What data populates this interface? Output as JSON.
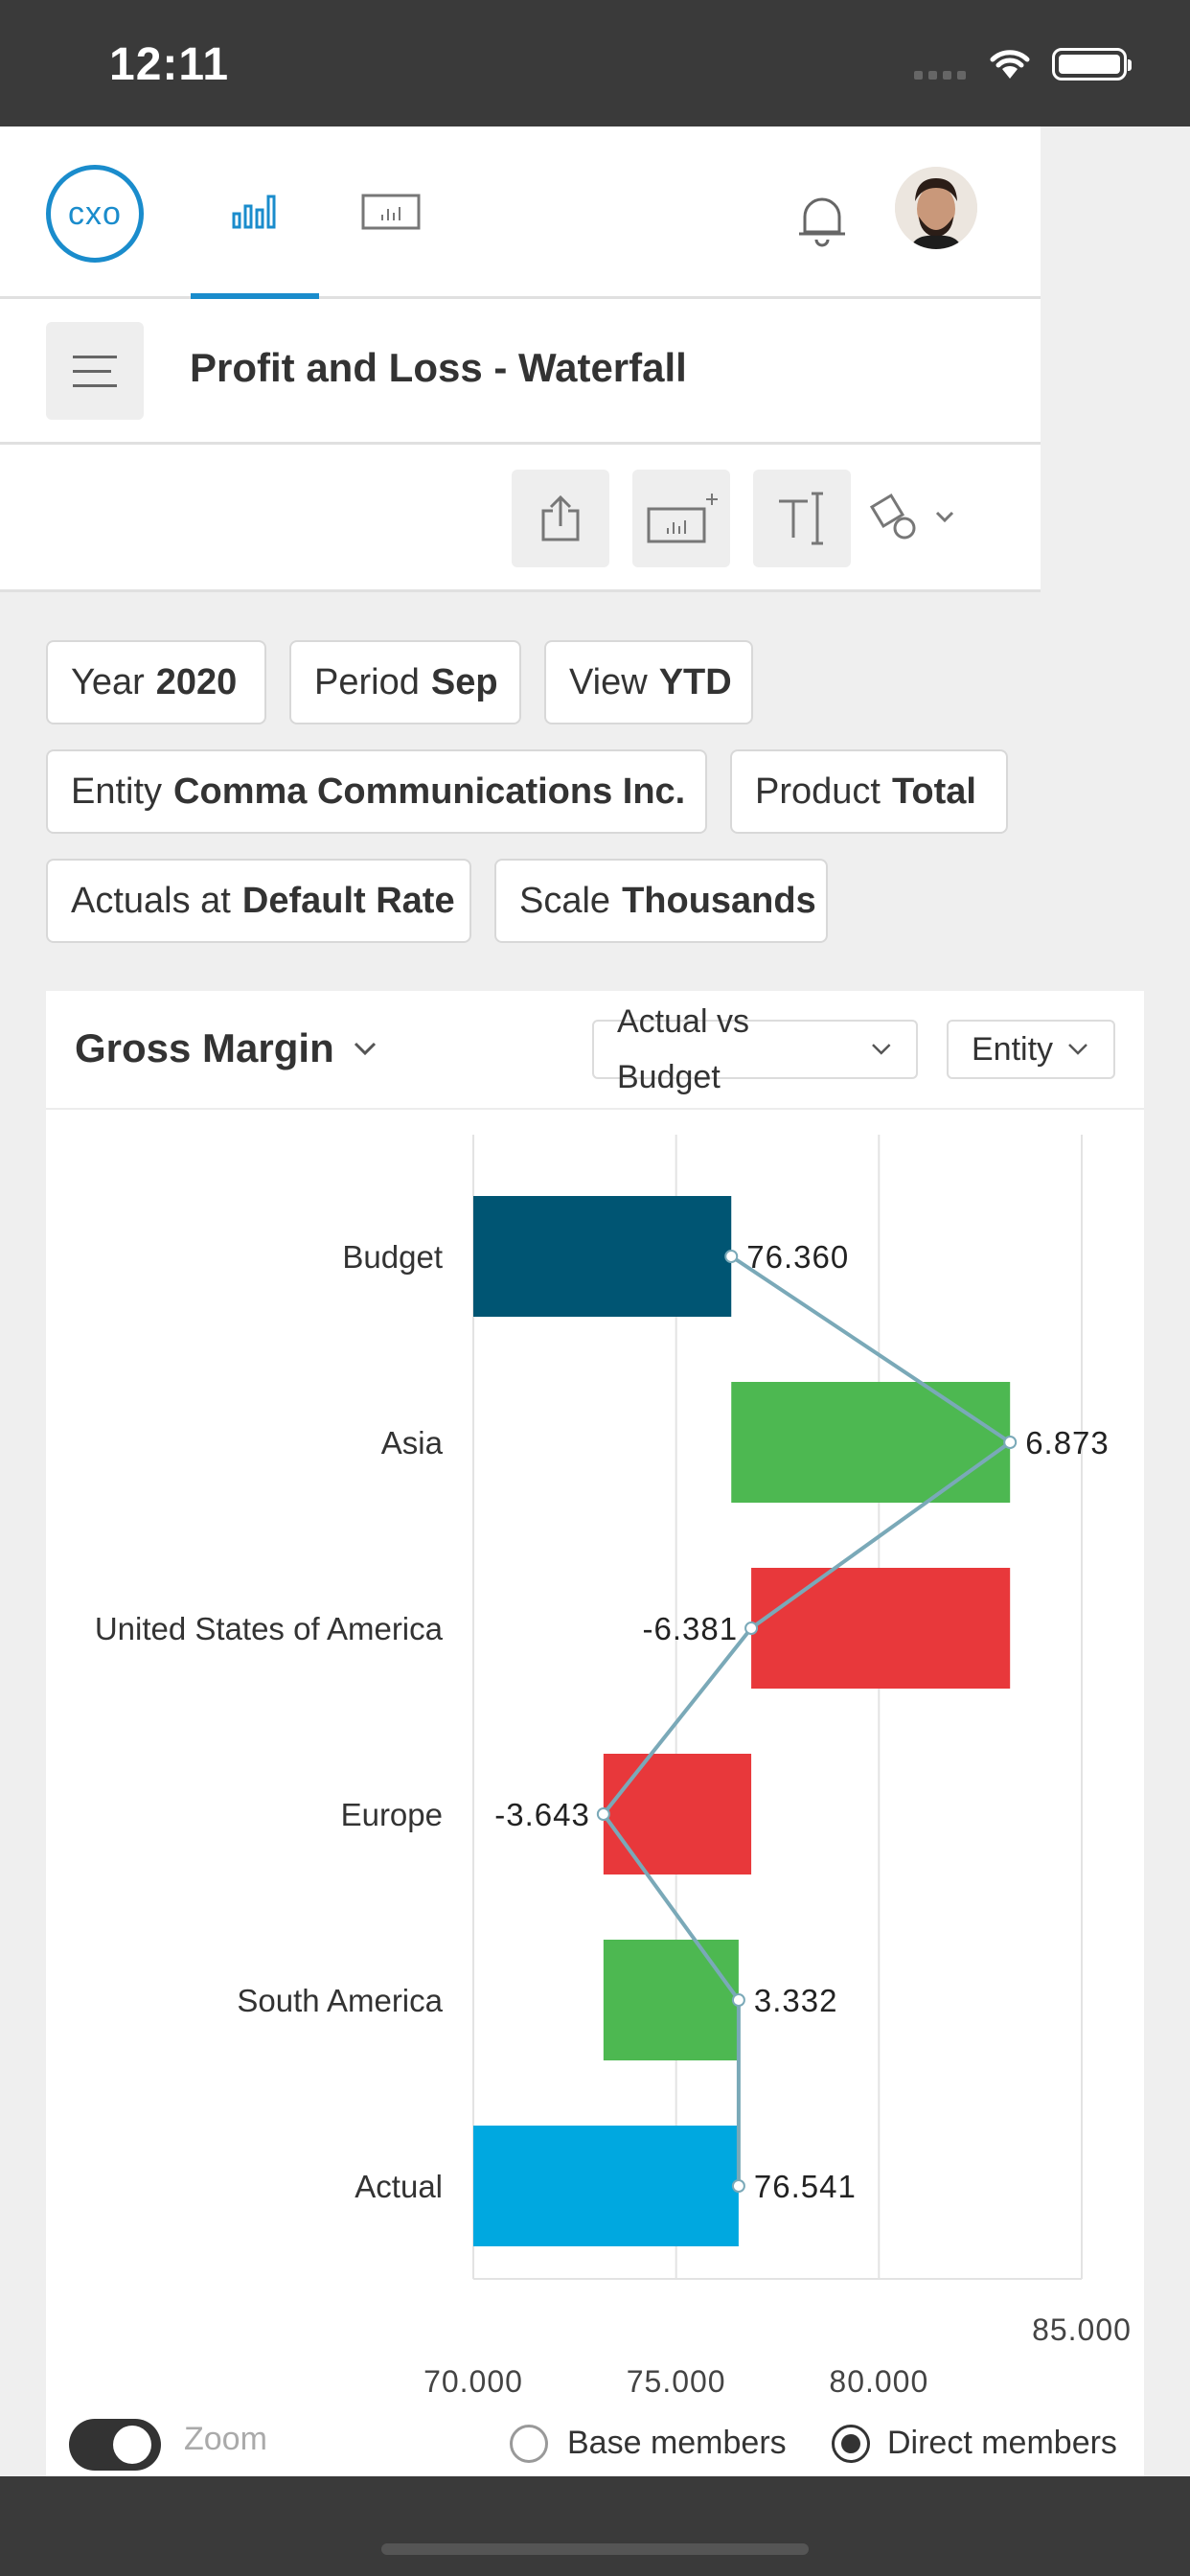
{
  "status_bar": {
    "time": "12:11"
  },
  "header": {
    "logo_text": "cxo",
    "nav_tabs": [
      {
        "icon": "bar-chart-icon",
        "active": true
      },
      {
        "icon": "dashboard-chart-icon",
        "active": false
      }
    ],
    "notification_icon": "bell-icon"
  },
  "title_bar": {
    "title": "Profit and Loss - Waterfall"
  },
  "toolbar": {
    "buttons": [
      "share-icon",
      "add-chart-icon",
      "text-tool-icon",
      "shapes-icon"
    ]
  },
  "filters": [
    {
      "label": "Year",
      "value": "2020"
    },
    {
      "label": "Period",
      "value": "Sep"
    },
    {
      "label": "View",
      "value": "YTD"
    },
    {
      "label": "Entity",
      "value": "Comma Communications Inc."
    },
    {
      "label": "Product",
      "value": "Total"
    },
    {
      "label": "Actuals at",
      "value": "Default Rate"
    },
    {
      "label": "Scale",
      "value": "Thousands"
    }
  ],
  "card": {
    "title": "Gross Margin",
    "dropdown_compare": "Actual vs Budget",
    "dropdown_dimension": "Entity"
  },
  "chart_data": {
    "type": "bar",
    "subtype": "horizontal-waterfall",
    "categories": [
      "Budget",
      "Asia",
      "United States of America",
      "Europe",
      "South America",
      "Actual"
    ],
    "values": [
      76.36,
      6.873,
      -6.381,
      -3.643,
      3.332,
      76.541
    ],
    "value_labels": [
      "76.360",
      "6.873",
      "-6.381",
      "-3.643",
      "3.332",
      "76.541"
    ],
    "xlim": [
      70,
      85
    ],
    "x_ticks": [
      "70.000",
      "75.000",
      "80.000",
      "85.000"
    ],
    "colors": {
      "budget": "#005573",
      "actual": "#00a8e0",
      "positive": "#4db851",
      "negative": "#e8383b",
      "connector": "#7aa9b8"
    },
    "grid": true
  },
  "footer": {
    "zoom_label": "Zoom",
    "radio_base": "Base members",
    "radio_direct": "Direct members",
    "selected": "Direct members"
  }
}
